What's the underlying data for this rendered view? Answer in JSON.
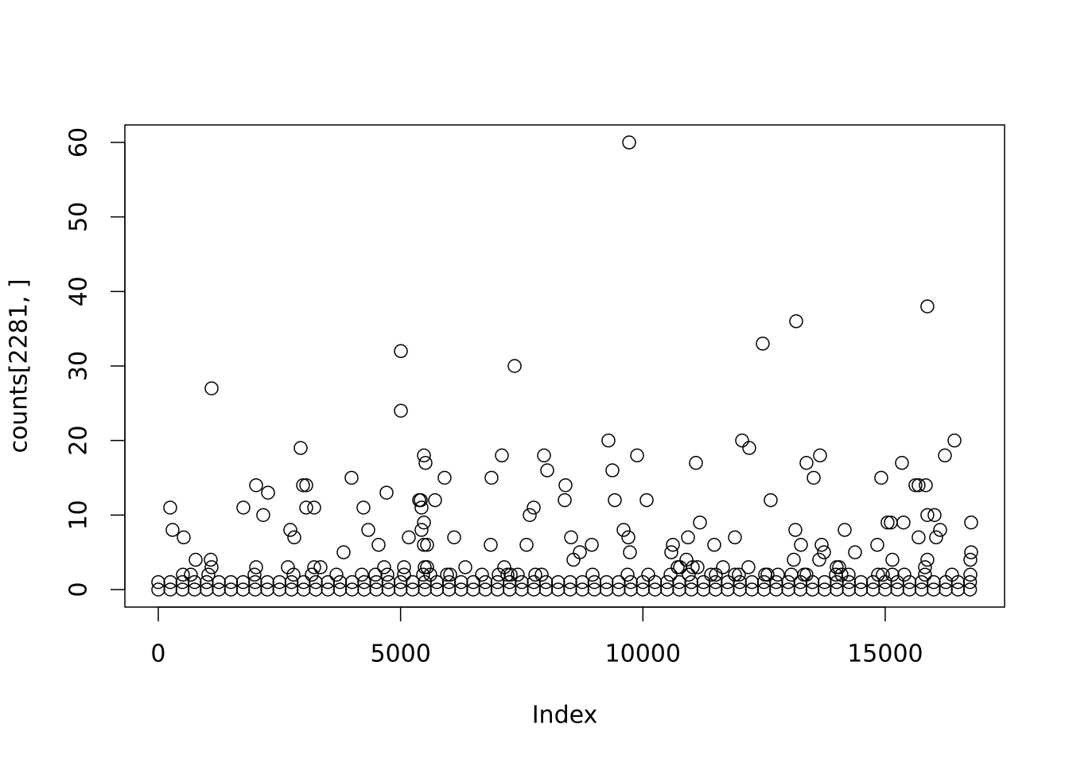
{
  "chart_data": {
    "type": "scatter",
    "xlabel": "Index",
    "ylabel": "counts[2281, ]",
    "color": "#000000",
    "xlim": [
      -689,
      17463
    ],
    "ylim": [
      -2.35,
      62.35
    ],
    "xticks": [
      0,
      5000,
      10000,
      15000
    ],
    "yticks": [
      0,
      10,
      20,
      30,
      40,
      50,
      60
    ],
    "x": [
      0,
      250,
      500,
      750,
      1000,
      1250,
      1500,
      1750,
      2000,
      2250,
      2500,
      2750,
      3000,
      3250,
      3500,
      3750,
      4000,
      4250,
      4500,
      4750,
      5000,
      5250,
      5500,
      5750,
      6000,
      6250,
      6500,
      6750,
      7000,
      7250,
      7500,
      7750,
      8000,
      8250,
      8500,
      8750,
      9000,
      9250,
      9500,
      9750,
      10000,
      10250,
      10500,
      10750,
      11000,
      11250,
      11500,
      11750,
      12000,
      12250,
      12500,
      12750,
      13000,
      13250,
      13500,
      13750,
      14000,
      14250,
      14500,
      14750,
      15000,
      15250,
      15500,
      15750,
      16000,
      16250,
      16500,
      16750,
      0,
      250,
      500,
      750,
      1000,
      1250,
      1500,
      1750,
      2000,
      2250,
      2500,
      2750,
      3000,
      3250,
      3500,
      3750,
      4000,
      4250,
      4500,
      4750,
      5000,
      5250,
      5500,
      5750,
      6000,
      6250,
      6500,
      6750,
      7000,
      7250,
      7500,
      7750,
      8000,
      8250,
      8500,
      8750,
      9000,
      9250,
      9500,
      9750,
      10000,
      10250,
      10500,
      10750,
      11000,
      11250,
      11500,
      11750,
      12000,
      12250,
      12500,
      12750,
      13000,
      13250,
      13500,
      13750,
      14000,
      14250,
      14500,
      14750,
      15000,
      15250,
      15500,
      15750,
      16000,
      16250,
      16500,
      16750,
      246,
      295,
      525,
      509,
      771,
      673,
      1100,
      1083,
      1100,
      1034,
      1756,
      2019,
      2019,
      1986,
      2166,
      2265,
      2675,
      2724,
      2806,
      2790,
      2938,
      2987,
      3053,
      3053,
      3217,
      3217,
      3348,
      3168,
      3676,
      3824,
      3988,
      4234,
      4201,
      4333,
      4481,
      4546,
      4661,
      4710,
      4727,
      5006,
      5006,
      5071,
      5071,
      5170,
      5383,
      5416,
      5432,
      5432,
      5482,
      5514,
      5482,
      5482,
      5547,
      5498,
      5547,
      5465,
      5613,
      5711,
      5908,
      5958,
      6023,
      6105,
      6335,
      6680,
      6860,
      6876,
      7024,
      7090,
      7139,
      7205,
      7353,
      7271,
      7418,
      7599,
      7665,
      7747,
      7780,
      7911,
      7960,
      8026,
      8387,
      8403,
      8518,
      8567,
      8699,
      8945,
      8961,
      9289,
      9371,
      9420,
      9601,
      9683,
      9700,
      9732,
      9716,
      9880,
      10077,
      10110,
      10586,
      10619,
      10570,
      10717,
      10766,
      10898,
      10931,
      10947,
      11029,
      11094,
      11127,
      11177,
      11406,
      11472,
      11505,
      11653,
      11899,
      11899,
      11981,
      12047,
      12178,
      12194,
      12473,
      12522,
      12571,
      12637,
      12785,
      13064,
      13114,
      13146,
      13163,
      13261,
      13327,
      13376,
      13376,
      13524,
      13639,
      13655,
      13688,
      13737,
      13999,
      14049,
      13983,
      14098,
      14164,
      14246,
      14377,
      14836,
      14852,
      14918,
      14951,
      15049,
      15115,
      15148,
      15148,
      15345,
      15378,
      15394,
      15624,
      15689,
      15689,
      15821,
      15837,
      15821,
      15870,
      15870,
      15870,
      16018,
      16051,
      16133,
      16232,
      16379,
      16429,
      16773,
      16773,
      16757,
      16757
    ],
    "values": [
      0,
      0,
      0,
      0,
      0,
      0,
      0,
      0,
      0,
      0,
      0,
      0,
      0,
      0,
      0,
      0,
      0,
      0,
      0,
      0,
      0,
      0,
      0,
      0,
      0,
      0,
      0,
      0,
      0,
      0,
      0,
      0,
      0,
      0,
      0,
      0,
      0,
      0,
      0,
      0,
      0,
      0,
      0,
      0,
      0,
      0,
      0,
      0,
      0,
      0,
      0,
      0,
      0,
      0,
      0,
      0,
      0,
      0,
      0,
      0,
      0,
      0,
      0,
      0,
      0,
      0,
      0,
      0,
      1,
      1,
      1,
      1,
      1,
      1,
      1,
      1,
      1,
      1,
      1,
      1,
      1,
      1,
      1,
      1,
      1,
      1,
      1,
      1,
      1,
      1,
      1,
      1,
      1,
      1,
      1,
      1,
      1,
      1,
      1,
      1,
      1,
      1,
      1,
      1,
      1,
      1,
      1,
      1,
      1,
      1,
      1,
      1,
      1,
      1,
      1,
      1,
      1,
      1,
      1,
      1,
      1,
      1,
      1,
      1,
      1,
      1,
      1,
      1,
      1,
      1,
      1,
      1,
      1,
      1,
      1,
      1,
      11,
      8,
      7,
      2,
      4,
      2,
      27,
      4,
      3,
      2,
      11,
      14,
      3,
      2,
      10,
      13,
      3,
      8,
      7,
      2,
      19,
      14,
      14,
      11,
      11,
      3,
      3,
      2,
      2,
      5,
      15,
      11,
      2,
      8,
      2,
      6,
      3,
      13,
      2,
      32,
      24,
      3,
      2,
      7,
      12,
      12,
      11,
      8,
      18,
      17,
      9,
      6,
      6,
      3,
      3,
      2,
      2,
      12,
      15,
      2,
      2,
      7,
      3,
      2,
      6,
      15,
      2,
      18,
      3,
      2,
      30,
      2,
      2,
      6,
      10,
      11,
      2,
      2,
      18,
      16,
      12,
      14,
      7,
      4,
      5,
      6,
      2,
      20,
      16,
      12,
      8,
      2,
      7,
      5,
      60,
      18,
      12,
      2,
      5,
      6,
      2,
      3,
      3,
      4,
      7,
      2,
      3,
      17,
      3,
      9,
      2,
      6,
      2,
      3,
      7,
      2,
      2,
      20,
      3,
      19,
      33,
      2,
      2,
      12,
      2,
      2,
      4,
      8,
      36,
      6,
      2,
      17,
      2,
      15,
      4,
      18,
      6,
      5,
      3,
      3,
      2,
      2,
      8,
      2,
      5,
      6,
      2,
      15,
      2,
      9,
      9,
      4,
      2,
      17,
      9,
      2,
      14,
      7,
      14,
      2,
      14,
      3,
      4,
      10,
      38,
      10,
      7,
      8,
      18,
      2,
      20,
      9,
      5,
      4,
      2
    ]
  }
}
